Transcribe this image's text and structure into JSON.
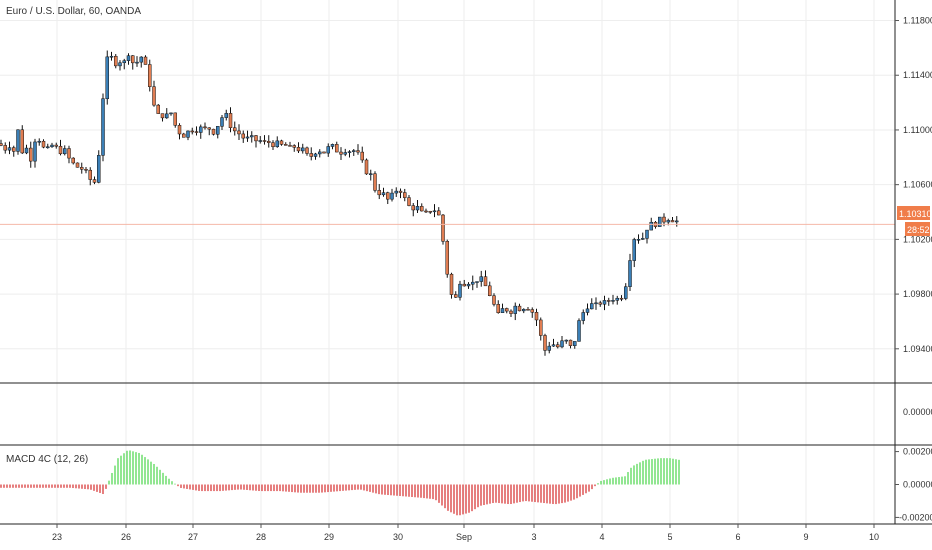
{
  "header": {
    "main_title": "Euro / U.S. Dollar, 60, OANDA",
    "macd_title": "MACD 4C (12, 26)"
  },
  "colors": {
    "candle_up": "#3b7fb6",
    "candle_down": "#e07d52",
    "wick": "#111111",
    "hist_pos": "#58d858",
    "hist_neg": "#d93a3a",
    "grid": "#eeeeee",
    "separator": "#222222",
    "price_line": "#f4b8a8",
    "price_label_bg": "#f07d4a",
    "axis_text": "#333333"
  },
  "price_badge": {
    "price": "1.10310",
    "countdown": "28:52"
  },
  "chart_data": [
    {
      "type": "candlestick",
      "title": "Euro / U.S. Dollar, 60, OANDA",
      "x_ticks": [
        "23",
        "26",
        "27",
        "28",
        "29",
        "30",
        "Sep",
        "3",
        "4",
        "5",
        "6",
        "9",
        "10"
      ],
      "y_ticks": [
        "1.11800",
        "1.11400",
        "1.11000",
        "1.10600",
        "1.10200",
        "1.09800",
        "1.09400"
      ],
      "ylim": [
        1.0915,
        1.1195
      ],
      "last_price": 1.1031,
      "close_path": [
        [
          0,
          1.109
        ],
        [
          4,
          1.1085
        ],
        [
          9,
          1.109
        ],
        [
          13,
          1.108
        ],
        [
          17,
          1.1105
        ],
        [
          21,
          1.1083
        ],
        [
          26,
          1.1088
        ],
        [
          30,
          1.1076
        ],
        [
          34,
          1.1092
        ],
        [
          38,
          1.1095
        ],
        [
          43,
          1.1087
        ],
        [
          47,
          1.1085
        ],
        [
          51,
          1.1089
        ],
        [
          55,
          1.1088
        ],
        [
          60,
          1.1084
        ],
        [
          64,
          1.1086
        ],
        [
          68,
          1.108
        ],
        [
          72,
          1.1076
        ],
        [
          77,
          1.1073
        ],
        [
          81,
          1.1072
        ],
        [
          85,
          1.107
        ],
        [
          89,
          1.1065
        ],
        [
          94,
          1.106
        ],
        [
          98,
          1.1075
        ],
        [
          102,
          1.1115
        ],
        [
          106,
          1.115
        ],
        [
          110,
          1.1155
        ],
        [
          115,
          1.1148
        ],
        [
          119,
          1.1152
        ],
        [
          123,
          1.1145
        ],
        [
          127,
          1.116
        ],
        [
          131,
          1.115
        ],
        [
          136,
          1.1148
        ],
        [
          140,
          1.1155
        ],
        [
          144,
          1.115
        ],
        [
          148,
          1.114
        ],
        [
          153,
          1.112
        ],
        [
          157,
          1.111
        ],
        [
          161,
          1.1112
        ],
        [
          165,
          1.1108
        ],
        [
          170,
          1.1115
        ],
        [
          174,
          1.1105
        ],
        [
          178,
          1.11
        ],
        [
          182,
          1.1095
        ],
        [
          187,
          1.1098
        ],
        [
          191,
          1.1101
        ],
        [
          195,
          1.1099
        ],
        [
          199,
          1.1102
        ],
        [
          204,
          1.11
        ],
        [
          208,
          1.1103
        ],
        [
          212,
          1.1097
        ],
        [
          216,
          1.1101
        ],
        [
          221,
          1.1108
        ],
        [
          225,
          1.1113
        ],
        [
          229,
          1.1105
        ],
        [
          233,
          1.11
        ],
        [
          238,
          1.1098
        ],
        [
          242,
          1.1095
        ],
        [
          246,
          1.1093
        ],
        [
          250,
          1.1095
        ],
        [
          255,
          1.1092
        ],
        [
          259,
          1.1093
        ],
        [
          263,
          1.109
        ],
        [
          267,
          1.1092
        ],
        [
          272,
          1.1089
        ],
        [
          276,
          1.1091
        ],
        [
          280,
          1.1088
        ],
        [
          284,
          1.109
        ],
        [
          289,
          1.1086
        ],
        [
          293,
          1.1089
        ],
        [
          297,
          1.1085
        ],
        [
          301,
          1.1087
        ],
        [
          306,
          1.1082
        ],
        [
          310,
          1.108
        ],
        [
          314,
          1.1083
        ],
        [
          318,
          1.1086
        ],
        [
          323,
          1.1083
        ],
        [
          327,
          1.1086
        ],
        [
          331,
          1.1089
        ],
        [
          335,
          1.1086
        ],
        [
          340,
          1.1083
        ],
        [
          344,
          1.1086
        ],
        [
          348,
          1.1084
        ],
        [
          352,
          1.1086
        ],
        [
          357,
          1.1083
        ],
        [
          361,
          1.108
        ],
        [
          365,
          1.1068
        ],
        [
          369,
          1.1072
        ],
        [
          374,
          1.1058
        ],
        [
          378,
          1.1053
        ],
        [
          382,
          1.1056
        ],
        [
          386,
          1.1048
        ],
        [
          391,
          1.1051
        ],
        [
          395,
          1.1055
        ],
        [
          399,
          1.1058
        ],
        [
          403,
          1.1052
        ],
        [
          408,
          1.1045
        ],
        [
          412,
          1.1042
        ],
        [
          416,
          1.1045
        ],
        [
          420,
          1.104
        ],
        [
          425,
          1.1038
        ],
        [
          429,
          1.1042
        ],
        [
          433,
          1.104
        ],
        [
          437,
          1.1044
        ],
        [
          442,
          1.1025
        ],
        [
          446,
          1.1
        ],
        [
          450,
          1.0985
        ],
        [
          454,
          1.097
        ],
        [
          459,
          1.099
        ],
        [
          463,
          1.0987
        ],
        [
          467,
          1.099
        ],
        [
          471,
          1.0987
        ],
        [
          476,
          1.099
        ],
        [
          480,
          1.0992
        ],
        [
          484,
          1.0988
        ],
        [
          488,
          1.0982
        ],
        [
          493,
          1.0975
        ],
        [
          497,
          1.0963
        ],
        [
          501,
          1.0968
        ],
        [
          505,
          1.097
        ],
        [
          510,
          1.0966
        ],
        [
          514,
          1.0972
        ],
        [
          518,
          1.0969
        ],
        [
          522,
          1.097
        ],
        [
          527,
          1.0971
        ],
        [
          531,
          1.0968
        ],
        [
          535,
          1.0965
        ],
        [
          539,
          1.0955
        ],
        [
          544,
          1.0938
        ],
        [
          548,
          1.0942
        ],
        [
          552,
          1.0945
        ],
        [
          556,
          1.094
        ],
        [
          561,
          1.0944
        ],
        [
          565,
          1.0947
        ],
        [
          569,
          1.0942
        ],
        [
          573,
          1.094
        ],
        [
          578,
          1.0958
        ],
        [
          582,
          1.0965
        ],
        [
          586,
          1.097
        ],
        [
          590,
          1.0973
        ],
        [
          595,
          1.0971
        ],
        [
          599,
          1.0974
        ],
        [
          603,
          1.0973
        ],
        [
          607,
          1.0975
        ],
        [
          612,
          1.0977
        ],
        [
          616,
          1.0976
        ],
        [
          620,
          1.0978
        ],
        [
          624,
          1.0979
        ],
        [
          629,
          1.1002
        ],
        [
          633,
          1.102
        ],
        [
          637,
          1.1023
        ],
        [
          641,
          1.1018
        ],
        [
          646,
          1.1027
        ],
        [
          650,
          1.1032
        ],
        [
          654,
          1.1029
        ],
        [
          658,
          1.1035
        ],
        [
          663,
          1.1033
        ],
        [
          667,
          1.1036
        ],
        [
          671,
          1.1034
        ],
        [
          675,
          1.1035
        ],
        [
          679,
          1.1031
        ]
      ]
    },
    {
      "type": "bar",
      "title": "MACD 4C (12, 26)",
      "y_ticks": [
        "0.00200",
        "0.00000",
        "-0.00200"
      ],
      "ylim": [
        -0.0024,
        0.0024
      ],
      "histogram_path": [
        [
          0,
          -0.0002
        ],
        [
          35,
          -0.0002
        ],
        [
          70,
          -0.0002
        ],
        [
          90,
          -0.0003
        ],
        [
          104,
          -0.0006
        ],
        [
          110,
          0.0004
        ],
        [
          118,
          0.0016
        ],
        [
          128,
          0.0021
        ],
        [
          140,
          0.0019
        ],
        [
          155,
          0.0012
        ],
        [
          168,
          0.0004
        ],
        [
          180,
          -0.0002
        ],
        [
          200,
          -0.0004
        ],
        [
          220,
          -0.0004
        ],
        [
          240,
          -0.0003
        ],
        [
          260,
          -0.0004
        ],
        [
          280,
          -0.0004
        ],
        [
          300,
          -0.0005
        ],
        [
          320,
          -0.0005
        ],
        [
          340,
          -0.0004
        ],
        [
          360,
          -0.0003
        ],
        [
          380,
          -0.0006
        ],
        [
          400,
          -0.0007
        ],
        [
          420,
          -0.0008
        ],
        [
          435,
          -0.0009
        ],
        [
          448,
          -0.0016
        ],
        [
          458,
          -0.0019
        ],
        [
          470,
          -0.0017
        ],
        [
          480,
          -0.0013
        ],
        [
          495,
          -0.0011
        ],
        [
          510,
          -0.0012
        ],
        [
          525,
          -0.001
        ],
        [
          540,
          -0.0011
        ],
        [
          555,
          -0.0012
        ],
        [
          565,
          -0.0011
        ],
        [
          575,
          -0.0009
        ],
        [
          590,
          -0.0004
        ],
        [
          600,
          0.0002
        ],
        [
          612,
          0.0004
        ],
        [
          625,
          0.0005
        ],
        [
          632,
          0.0011
        ],
        [
          645,
          0.0015
        ],
        [
          660,
          0.0016
        ],
        [
          670,
          0.0016
        ],
        [
          679,
          0.0015
        ]
      ]
    }
  ]
}
